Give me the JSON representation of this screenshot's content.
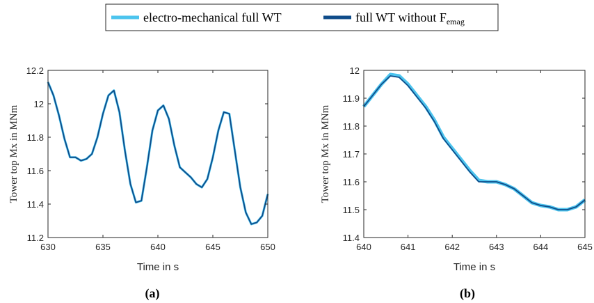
{
  "legend": {
    "items": [
      {
        "label": "electro-mechanical full WT",
        "color": "#4cc4ee"
      },
      {
        "label": "full WT without F",
        "subscript": "emag",
        "color": "#0f4c8a"
      }
    ]
  },
  "chart_data": [
    {
      "type": "line",
      "panel_label": "(a)",
      "xlabel": "Time in s",
      "ylabel": "Tower top Mx in MNm",
      "xlim": [
        630,
        650
      ],
      "ylim": [
        11.2,
        12.2
      ],
      "xticks": [
        630,
        635,
        640,
        645,
        650
      ],
      "yticks": [
        11.2,
        11.4,
        11.6,
        11.8,
        12.0,
        12.2
      ],
      "ytick_labels": [
        "11.2",
        "11.4",
        "11.6",
        "11.8",
        "12",
        "12.2"
      ],
      "grid": false,
      "series": [
        {
          "name": "electro-mechanical full WT",
          "color": "#4cc4ee",
          "x": [
            630,
            630.5,
            631,
            631.5,
            632,
            632.5,
            633,
            633.5,
            634,
            634.5,
            635,
            635.5,
            636,
            636.5,
            637,
            637.5,
            638,
            638.5,
            639,
            639.5,
            640,
            640.5,
            641,
            641.5,
            642,
            642.5,
            643,
            643.5,
            644,
            644.5,
            645,
            645.5,
            646,
            646.5,
            647,
            647.5,
            648,
            648.5,
            649,
            649.5,
            650
          ],
          "y": [
            12.13,
            12.05,
            11.93,
            11.79,
            11.68,
            11.68,
            11.66,
            11.67,
            11.7,
            11.8,
            11.94,
            12.05,
            12.08,
            11.95,
            11.72,
            11.52,
            11.41,
            11.42,
            11.62,
            11.84,
            11.96,
            11.99,
            11.91,
            11.75,
            11.62,
            11.59,
            11.56,
            11.52,
            11.5,
            11.55,
            11.68,
            11.84,
            11.95,
            11.94,
            11.72,
            11.5,
            11.35,
            11.28,
            11.29,
            11.33,
            11.46
          ]
        },
        {
          "name": "full WT without F_emag",
          "color": "#0f4c8a",
          "x": [
            630,
            630.5,
            631,
            631.5,
            632,
            632.5,
            633,
            633.5,
            634,
            634.5,
            635,
            635.5,
            636,
            636.5,
            637,
            637.5,
            638,
            638.5,
            639,
            639.5,
            640,
            640.5,
            641,
            641.5,
            642,
            642.5,
            643,
            643.5,
            644,
            644.5,
            645,
            645.5,
            646,
            646.5,
            647,
            647.5,
            648,
            648.5,
            649,
            649.5,
            650
          ],
          "y": [
            12.13,
            12.05,
            11.93,
            11.79,
            11.68,
            11.68,
            11.66,
            11.67,
            11.7,
            11.8,
            11.94,
            12.05,
            12.08,
            11.95,
            11.72,
            11.52,
            11.41,
            11.42,
            11.62,
            11.84,
            11.96,
            11.99,
            11.91,
            11.75,
            11.62,
            11.59,
            11.56,
            11.52,
            11.5,
            11.55,
            11.68,
            11.84,
            11.95,
            11.94,
            11.72,
            11.5,
            11.35,
            11.28,
            11.29,
            11.33,
            11.46
          ]
        }
      ]
    },
    {
      "type": "line",
      "panel_label": "(b)",
      "xlabel": "Time in s",
      "ylabel": "Tower top Mx in MNm",
      "xlim": [
        640,
        645
      ],
      "ylim": [
        11.4,
        12.0
      ],
      "xticks": [
        640,
        641,
        642,
        643,
        644,
        645
      ],
      "yticks": [
        11.4,
        11.5,
        11.6,
        11.7,
        11.8,
        11.9,
        12.0
      ],
      "ytick_labels": [
        "11.4",
        "11.5",
        "11.6",
        "11.7",
        "11.8",
        "11.9",
        "12"
      ],
      "grid": false,
      "series": [
        {
          "name": "electro-mechanical full WT",
          "color": "#4cc4ee",
          "x": [
            640,
            640.2,
            640.4,
            640.6,
            640.8,
            641,
            641.2,
            641.4,
            641.6,
            641.8,
            642,
            642.2,
            642.4,
            642.6,
            642.8,
            643,
            643.2,
            643.4,
            643.6,
            643.8,
            644,
            644.2,
            644.4,
            644.6,
            644.8,
            645
          ],
          "y": [
            11.87,
            11.91,
            11.95,
            11.985,
            11.98,
            11.95,
            11.91,
            11.87,
            11.82,
            11.76,
            11.72,
            11.68,
            11.64,
            11.605,
            11.6,
            11.6,
            11.59,
            11.575,
            11.55,
            11.525,
            11.515,
            11.51,
            11.5,
            11.5,
            11.51,
            11.535
          ]
        },
        {
          "name": "full WT without F_emag",
          "color": "#0f4c8a",
          "x": [
            640,
            640.2,
            640.4,
            640.6,
            640.8,
            641,
            641.2,
            641.4,
            641.6,
            641.8,
            642,
            642.2,
            642.4,
            642.6,
            642.8,
            643,
            643.2,
            643.4,
            643.6,
            643.8,
            644,
            644.2,
            644.4,
            644.6,
            644.8,
            645
          ],
          "y": [
            11.87,
            11.91,
            11.95,
            11.98,
            11.975,
            11.945,
            11.905,
            11.865,
            11.815,
            11.755,
            11.715,
            11.675,
            11.635,
            11.6,
            11.6,
            11.6,
            11.59,
            11.575,
            11.55,
            11.525,
            11.515,
            11.51,
            11.5,
            11.5,
            11.51,
            11.535
          ]
        }
      ]
    }
  ]
}
